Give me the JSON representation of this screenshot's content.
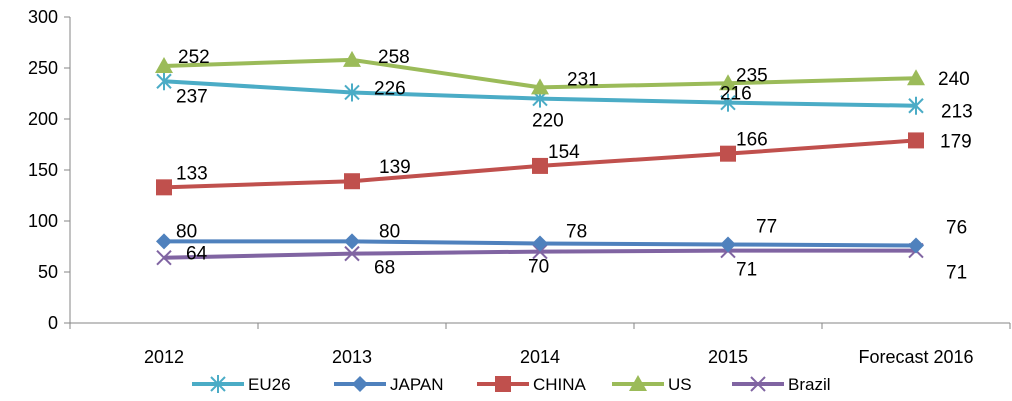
{
  "chart_data": {
    "type": "line",
    "categories": [
      "2012",
      "2013",
      "2014",
      "2015",
      "Forecast 2016"
    ],
    "ylim": [
      0,
      300
    ],
    "yticks": [
      0,
      50,
      100,
      150,
      200,
      250,
      300
    ],
    "grid": false,
    "legend_position": "bottom",
    "series": [
      {
        "name": "EU26",
        "values": [
          237,
          226,
          220,
          216,
          213
        ],
        "color": "#4bacc6",
        "marker": "asterisk",
        "labels": [
          "237",
          "226",
          "220",
          "216",
          "213"
        ]
      },
      {
        "name": "JAPAN",
        "values": [
          80,
          80,
          78,
          77,
          76
        ],
        "color": "#4f81bd",
        "marker": "diamond",
        "labels": [
          "80",
          "80",
          "78",
          "77",
          "76"
        ]
      },
      {
        "name": "CHINA",
        "values": [
          133,
          139,
          154,
          166,
          179
        ],
        "color": "#c0504d",
        "marker": "square",
        "labels": [
          "133",
          "139",
          "154",
          "166",
          "179"
        ]
      },
      {
        "name": "US",
        "values": [
          252,
          258,
          231,
          235,
          240
        ],
        "color": "#9bbb59",
        "marker": "triangle",
        "labels": [
          "252",
          "258",
          "231",
          "235",
          "240"
        ]
      },
      {
        "name": "Brazil",
        "values": [
          64,
          68,
          70,
          71,
          71
        ],
        "color": "#8064a2",
        "marker": "cross",
        "labels": [
          "64",
          "68",
          "70",
          "71",
          "71"
        ]
      }
    ]
  }
}
